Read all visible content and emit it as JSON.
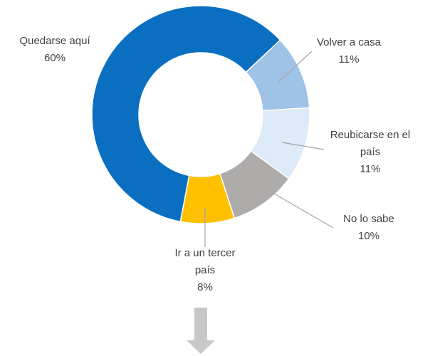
{
  "chart_data": {
    "type": "donut",
    "categories": [
      "Quedarse aquí",
      "Volver a casa",
      "Reubicarse en el país",
      "No lo sabe",
      "Ir a un tercer país"
    ],
    "values": [
      60,
      11,
      11,
      10,
      8
    ],
    "value_labels": [
      "60%",
      "11%",
      "11%",
      "10%",
      "8%"
    ],
    "colors": [
      "#0b6fc1",
      "#9fc3e7",
      "#ddeaf7",
      "#aeabab",
      "#ffc000"
    ]
  }
}
